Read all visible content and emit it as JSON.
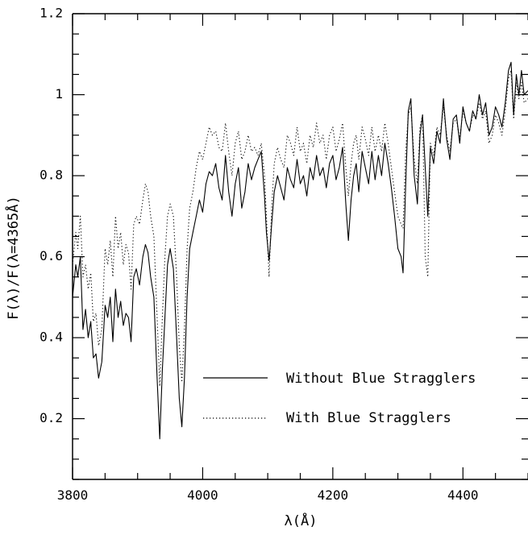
{
  "chart_data": {
    "type": "line",
    "title": "",
    "xlabel": "λ(Å)",
    "ylabel": "F(λ)/F(λ=4365Å)",
    "xlim": [
      3800,
      4500
    ],
    "ylim": [
      0.05,
      1.2
    ],
    "xticks": [
      {
        "value": 3800,
        "label": "3800"
      },
      {
        "value": 4000,
        "label": "4000"
      },
      {
        "value": 4200,
        "label": "4200"
      },
      {
        "value": 4400,
        "label": "4400"
      }
    ],
    "yticks": [
      {
        "value": 0.2,
        "label": "0.2"
      },
      {
        "value": 0.4,
        "label": "0.4"
      },
      {
        "value": 0.6,
        "label": "0.6"
      },
      {
        "value": 0.8,
        "label": "0.8"
      },
      {
        "value": 1.0,
        "label": "1"
      },
      {
        "value": 1.2,
        "label": "1.2"
      }
    ],
    "grid": false,
    "legend_position": "lower-right",
    "series": [
      {
        "name": "Without Blue Stragglers",
        "style": "solid",
        "color": "#000000",
        "points": [
          [
            3800,
            0.5
          ],
          [
            3805,
            0.58
          ],
          [
            3808,
            0.55
          ],
          [
            3812,
            0.6
          ],
          [
            3816,
            0.42
          ],
          [
            3820,
            0.47
          ],
          [
            3824,
            0.4
          ],
          [
            3828,
            0.44
          ],
          [
            3832,
            0.35
          ],
          [
            3836,
            0.36
          ],
          [
            3840,
            0.3
          ],
          [
            3845,
            0.34
          ],
          [
            3850,
            0.48
          ],
          [
            3854,
            0.45
          ],
          [
            3858,
            0.5
          ],
          [
            3862,
            0.39
          ],
          [
            3866,
            0.52
          ],
          [
            3870,
            0.45
          ],
          [
            3874,
            0.49
          ],
          [
            3878,
            0.43
          ],
          [
            3882,
            0.46
          ],
          [
            3886,
            0.45
          ],
          [
            3890,
            0.39
          ],
          [
            3894,
            0.55
          ],
          [
            3898,
            0.57
          ],
          [
            3903,
            0.53
          ],
          [
            3908,
            0.6
          ],
          [
            3912,
            0.63
          ],
          [
            3916,
            0.61
          ],
          [
            3920,
            0.55
          ],
          [
            3925,
            0.5
          ],
          [
            3930,
            0.3
          ],
          [
            3934,
            0.15
          ],
          [
            3938,
            0.32
          ],
          [
            3942,
            0.45
          ],
          [
            3946,
            0.58
          ],
          [
            3950,
            0.62
          ],
          [
            3955,
            0.57
          ],
          [
            3960,
            0.4
          ],
          [
            3964,
            0.25
          ],
          [
            3968,
            0.18
          ],
          [
            3972,
            0.3
          ],
          [
            3976,
            0.5
          ],
          [
            3980,
            0.62
          ],
          [
            3985,
            0.66
          ],
          [
            3990,
            0.7
          ],
          [
            3995,
            0.74
          ],
          [
            4000,
            0.71
          ],
          [
            4005,
            0.78
          ],
          [
            4010,
            0.81
          ],
          [
            4015,
            0.8
          ],
          [
            4020,
            0.83
          ],
          [
            4025,
            0.77
          ],
          [
            4030,
            0.74
          ],
          [
            4035,
            0.85
          ],
          [
            4040,
            0.76
          ],
          [
            4045,
            0.7
          ],
          [
            4050,
            0.78
          ],
          [
            4055,
            0.82
          ],
          [
            4060,
            0.72
          ],
          [
            4065,
            0.76
          ],
          [
            4070,
            0.83
          ],
          [
            4075,
            0.79
          ],
          [
            4080,
            0.82
          ],
          [
            4085,
            0.84
          ],
          [
            4090,
            0.86
          ],
          [
            4095,
            0.75
          ],
          [
            4098,
            0.66
          ],
          [
            4102,
            0.59
          ],
          [
            4106,
            0.68
          ],
          [
            4110,
            0.76
          ],
          [
            4115,
            0.8
          ],
          [
            4120,
            0.77
          ],
          [
            4125,
            0.74
          ],
          [
            4130,
            0.82
          ],
          [
            4135,
            0.79
          ],
          [
            4140,
            0.77
          ],
          [
            4145,
            0.84
          ],
          [
            4150,
            0.78
          ],
          [
            4155,
            0.8
          ],
          [
            4160,
            0.75
          ],
          [
            4165,
            0.82
          ],
          [
            4170,
            0.79
          ],
          [
            4175,
            0.85
          ],
          [
            4180,
            0.8
          ],
          [
            4185,
            0.82
          ],
          [
            4190,
            0.77
          ],
          [
            4195,
            0.83
          ],
          [
            4200,
            0.85
          ],
          [
            4205,
            0.79
          ],
          [
            4210,
            0.82
          ],
          [
            4215,
            0.87
          ],
          [
            4220,
            0.73
          ],
          [
            4224,
            0.64
          ],
          [
            4228,
            0.74
          ],
          [
            4232,
            0.8
          ],
          [
            4236,
            0.83
          ],
          [
            4240,
            0.76
          ],
          [
            4245,
            0.86
          ],
          [
            4250,
            0.82
          ],
          [
            4255,
            0.78
          ],
          [
            4260,
            0.86
          ],
          [
            4265,
            0.79
          ],
          [
            4270,
            0.85
          ],
          [
            4275,
            0.8
          ],
          [
            4280,
            0.88
          ],
          [
            4285,
            0.83
          ],
          [
            4290,
            0.77
          ],
          [
            4295,
            0.7
          ],
          [
            4300,
            0.62
          ],
          [
            4305,
            0.6
          ],
          [
            4308,
            0.56
          ],
          [
            4312,
            0.78
          ],
          [
            4316,
            0.96
          ],
          [
            4320,
            0.99
          ],
          [
            4325,
            0.8
          ],
          [
            4330,
            0.73
          ],
          [
            4334,
            0.9
          ],
          [
            4338,
            0.95
          ],
          [
            4342,
            0.82
          ],
          [
            4346,
            0.7
          ],
          [
            4350,
            0.87
          ],
          [
            4355,
            0.83
          ],
          [
            4360,
            0.91
          ],
          [
            4365,
            0.88
          ],
          [
            4370,
            0.99
          ],
          [
            4375,
            0.89
          ],
          [
            4380,
            0.84
          ],
          [
            4385,
            0.94
          ],
          [
            4390,
            0.95
          ],
          [
            4395,
            0.88
          ],
          [
            4400,
            0.97
          ],
          [
            4405,
            0.93
          ],
          [
            4410,
            0.91
          ],
          [
            4415,
            0.96
          ],
          [
            4420,
            0.94
          ],
          [
            4425,
            1.0
          ],
          [
            4430,
            0.95
          ],
          [
            4435,
            0.98
          ],
          [
            4440,
            0.9
          ],
          [
            4445,
            0.92
          ],
          [
            4450,
            0.97
          ],
          [
            4455,
            0.95
          ],
          [
            4460,
            0.92
          ],
          [
            4465,
            0.98
          ],
          [
            4470,
            1.06
          ],
          [
            4474,
            1.08
          ],
          [
            4478,
            0.95
          ],
          [
            4482,
            1.05
          ],
          [
            4486,
            1.0
          ],
          [
            4490,
            1.06
          ],
          [
            4494,
            1.0
          ],
          [
            4500,
            1.01
          ]
        ]
      },
      {
        "name": "With Blue Stragglers",
        "style": "dotted",
        "color": "#000000",
        "points": [
          [
            3800,
            0.58
          ],
          [
            3805,
            0.66
          ],
          [
            3808,
            0.62
          ],
          [
            3812,
            0.7
          ],
          [
            3816,
            0.55
          ],
          [
            3820,
            0.58
          ],
          [
            3824,
            0.52
          ],
          [
            3828,
            0.56
          ],
          [
            3832,
            0.44
          ],
          [
            3836,
            0.46
          ],
          [
            3840,
            0.38
          ],
          [
            3845,
            0.42
          ],
          [
            3850,
            0.62
          ],
          [
            3854,
            0.58
          ],
          [
            3858,
            0.64
          ],
          [
            3862,
            0.55
          ],
          [
            3866,
            0.7
          ],
          [
            3870,
            0.62
          ],
          [
            3874,
            0.66
          ],
          [
            3878,
            0.58
          ],
          [
            3882,
            0.63
          ],
          [
            3886,
            0.61
          ],
          [
            3890,
            0.52
          ],
          [
            3894,
            0.68
          ],
          [
            3898,
            0.7
          ],
          [
            3903,
            0.68
          ],
          [
            3908,
            0.74
          ],
          [
            3912,
            0.78
          ],
          [
            3916,
            0.76
          ],
          [
            3920,
            0.7
          ],
          [
            3925,
            0.65
          ],
          [
            3930,
            0.45
          ],
          [
            3934,
            0.28
          ],
          [
            3938,
            0.45
          ],
          [
            3942,
            0.6
          ],
          [
            3946,
            0.7
          ],
          [
            3950,
            0.73
          ],
          [
            3955,
            0.7
          ],
          [
            3960,
            0.55
          ],
          [
            3964,
            0.38
          ],
          [
            3968,
            0.29
          ],
          [
            3972,
            0.42
          ],
          [
            3976,
            0.62
          ],
          [
            3980,
            0.72
          ],
          [
            3985,
            0.76
          ],
          [
            3990,
            0.82
          ],
          [
            3995,
            0.86
          ],
          [
            4000,
            0.84
          ],
          [
            4005,
            0.88
          ],
          [
            4010,
            0.92
          ],
          [
            4015,
            0.9
          ],
          [
            4020,
            0.91
          ],
          [
            4025,
            0.87
          ],
          [
            4030,
            0.86
          ],
          [
            4035,
            0.93
          ],
          [
            4040,
            0.86
          ],
          [
            4045,
            0.8
          ],
          [
            4050,
            0.88
          ],
          [
            4055,
            0.91
          ],
          [
            4060,
            0.84
          ],
          [
            4065,
            0.86
          ],
          [
            4070,
            0.9
          ],
          [
            4075,
            0.86
          ],
          [
            4080,
            0.87
          ],
          [
            4085,
            0.85
          ],
          [
            4090,
            0.88
          ],
          [
            4095,
            0.8
          ],
          [
            4098,
            0.7
          ],
          [
            4102,
            0.55
          ],
          [
            4106,
            0.72
          ],
          [
            4110,
            0.83
          ],
          [
            4115,
            0.87
          ],
          [
            4120,
            0.84
          ],
          [
            4125,
            0.82
          ],
          [
            4130,
            0.9
          ],
          [
            4135,
            0.88
          ],
          [
            4140,
            0.85
          ],
          [
            4145,
            0.92
          ],
          [
            4150,
            0.86
          ],
          [
            4155,
            0.88
          ],
          [
            4160,
            0.83
          ],
          [
            4165,
            0.9
          ],
          [
            4170,
            0.87
          ],
          [
            4175,
            0.93
          ],
          [
            4180,
            0.88
          ],
          [
            4185,
            0.9
          ],
          [
            4190,
            0.84
          ],
          [
            4195,
            0.9
          ],
          [
            4200,
            0.92
          ],
          [
            4205,
            0.86
          ],
          [
            4210,
            0.89
          ],
          [
            4215,
            0.93
          ],
          [
            4220,
            0.82
          ],
          [
            4224,
            0.75
          ],
          [
            4228,
            0.83
          ],
          [
            4232,
            0.88
          ],
          [
            4236,
            0.9
          ],
          [
            4240,
            0.84
          ],
          [
            4245,
            0.92
          ],
          [
            4250,
            0.89
          ],
          [
            4255,
            0.85
          ],
          [
            4260,
            0.92
          ],
          [
            4265,
            0.86
          ],
          [
            4270,
            0.9
          ],
          [
            4275,
            0.86
          ],
          [
            4280,
            0.93
          ],
          [
            4285,
            0.88
          ],
          [
            4290,
            0.82
          ],
          [
            4295,
            0.76
          ],
          [
            4300,
            0.7
          ],
          [
            4305,
            0.68
          ],
          [
            4308,
            0.67
          ],
          [
            4312,
            0.86
          ],
          [
            4316,
            0.95
          ],
          [
            4320,
            0.97
          ],
          [
            4325,
            0.84
          ],
          [
            4330,
            0.78
          ],
          [
            4334,
            0.92
          ],
          [
            4338,
            0.95
          ],
          [
            4342,
            0.6
          ],
          [
            4346,
            0.55
          ],
          [
            4350,
            0.88
          ],
          [
            4355,
            0.85
          ],
          [
            4360,
            0.92
          ],
          [
            4365,
            0.9
          ],
          [
            4370,
            0.97
          ],
          [
            4375,
            0.9
          ],
          [
            4380,
            0.86
          ],
          [
            4385,
            0.93
          ],
          [
            4390,
            0.94
          ],
          [
            4395,
            0.89
          ],
          [
            4400,
            0.96
          ],
          [
            4405,
            0.93
          ],
          [
            4410,
            0.91
          ],
          [
            4415,
            0.95
          ],
          [
            4420,
            0.94
          ],
          [
            4425,
            0.98
          ],
          [
            4430,
            0.94
          ],
          [
            4435,
            0.96
          ],
          [
            4440,
            0.88
          ],
          [
            4445,
            0.9
          ],
          [
            4450,
            0.95
          ],
          [
            4455,
            0.93
          ],
          [
            4460,
            0.9
          ],
          [
            4465,
            0.96
          ],
          [
            4470,
            1.04
          ],
          [
            4474,
            1.06
          ],
          [
            4478,
            0.94
          ],
          [
            4482,
            1.03
          ],
          [
            4486,
            0.99
          ],
          [
            4490,
            1.03
          ],
          [
            4494,
            0.98
          ],
          [
            4500,
            0.99
          ]
        ]
      }
    ]
  }
}
